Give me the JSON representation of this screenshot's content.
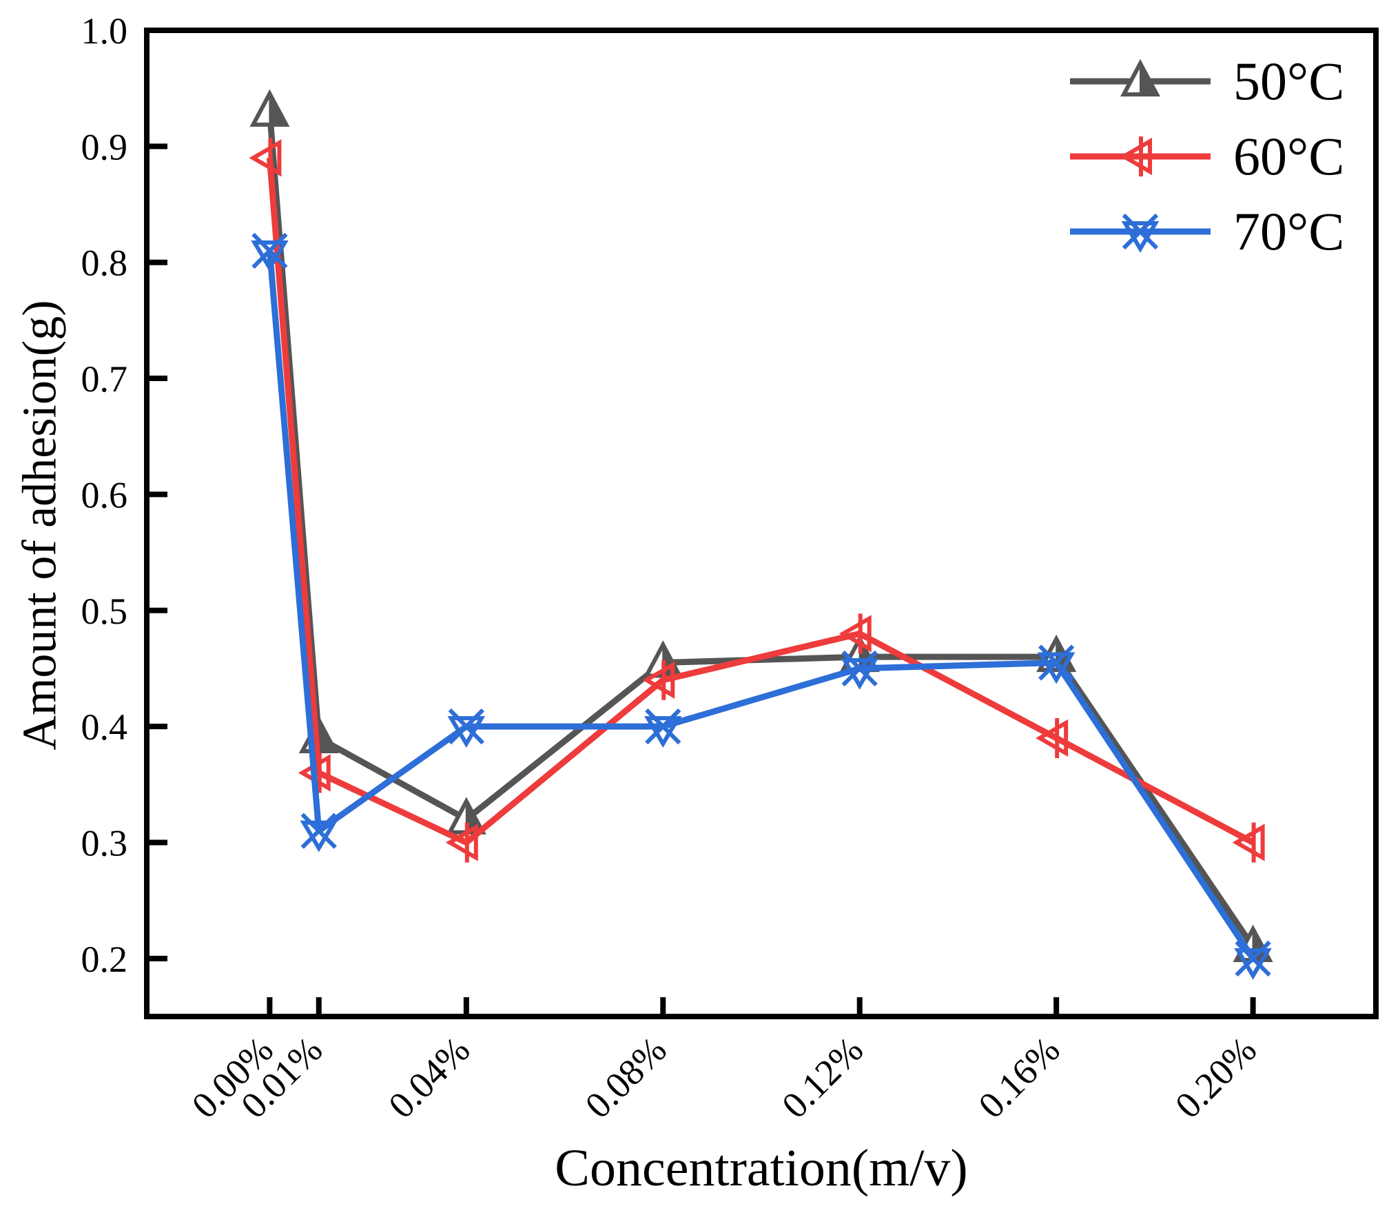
{
  "figure": {
    "background": "#ffffff",
    "axis_color": "#000000"
  },
  "chart_data": {
    "type": "line",
    "title": "",
    "xlabel": "Concentration(m/v)",
    "ylabel": "Amount of adhesion(g)",
    "categories": [
      "0.00%",
      "0.01%",
      "0.04%",
      "0.08%",
      "0.12%",
      "0.16%",
      "0.20%"
    ],
    "x": [
      0.0,
      0.01,
      0.04,
      0.08,
      0.12,
      0.16,
      0.2
    ],
    "series": [
      {
        "name": "50°C",
        "color": "#555555",
        "marker": "half-filled-up-triangle",
        "values": [
          0.93,
          0.39,
          0.32,
          0.455,
          0.46,
          0.46,
          0.21
        ]
      },
      {
        "name": "60°C",
        "color": "#EE3B3C",
        "marker": "open-left-triangle-vertical-line",
        "values": [
          0.89,
          0.36,
          0.3,
          0.44,
          0.48,
          0.39,
          0.3
        ]
      },
      {
        "name": "70°C",
        "color": "#2D6ED7",
        "marker": "open-down-triangle-with-x",
        "values": [
          0.81,
          0.31,
          0.4,
          0.4,
          0.45,
          0.455,
          0.2
        ]
      }
    ],
    "xlim": [
      -0.025,
      0.225
    ],
    "ylim": [
      0.15,
      1.0
    ],
    "yticks": [
      0.2,
      0.3,
      0.4,
      0.5,
      0.6,
      0.7,
      0.8,
      0.9,
      1.0
    ],
    "ytick_labels": [
      "0.2",
      "0.3",
      "0.4",
      "0.5",
      "0.6",
      "0.7",
      "0.8",
      "0.9",
      "1.0"
    ],
    "grid": false,
    "legend_position": "top-right"
  }
}
